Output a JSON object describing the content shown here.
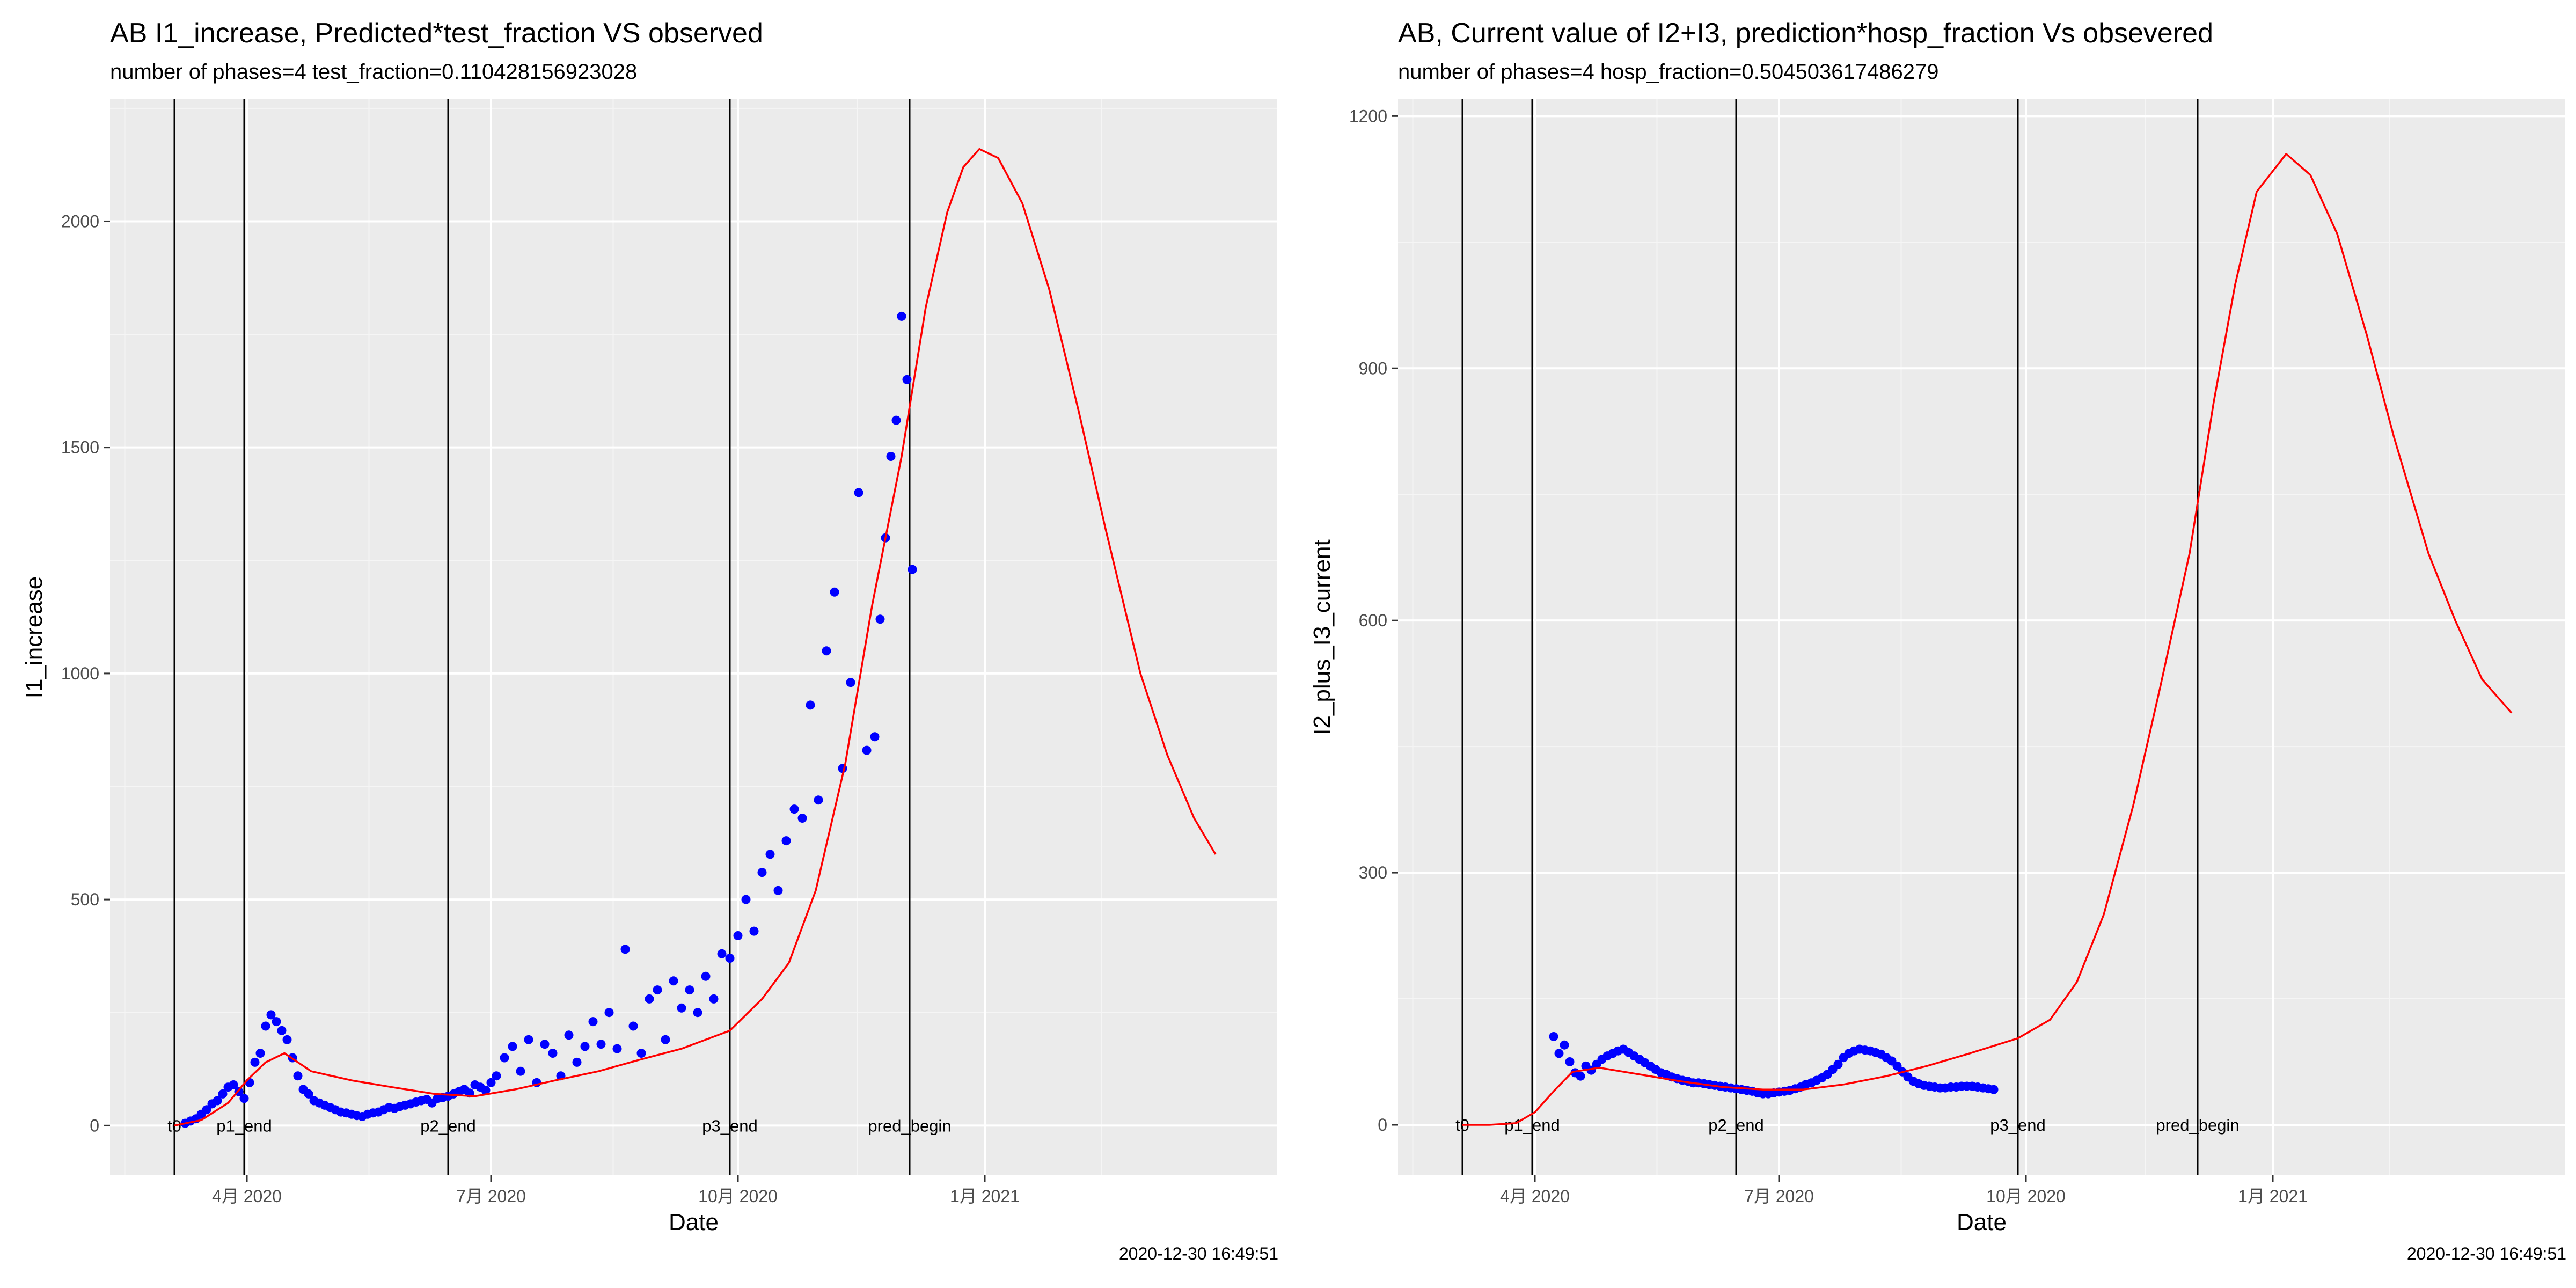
{
  "chart_data": [
    {
      "type": "scatter",
      "title": "AB I1_increase, Predicted*test_fraction VS observed",
      "subtitle": "number of phases=4   test_fraction=0.110428156923028",
      "xlabel": "Date",
      "ylabel": "I1_increase",
      "timestamp": "2020-12-30 16:49:51",
      "xlim": [
        "2020-02-10",
        "2021-04-20"
      ],
      "ylim": [
        -110,
        2270
      ],
      "grid": true,
      "x_ticks": [
        {
          "date": "2020-04-01",
          "label": "4月 2020"
        },
        {
          "date": "2020-07-01",
          "label": "7月 2020"
        },
        {
          "date": "2020-10-01",
          "label": "10月 2020"
        },
        {
          "date": "2021-01-01",
          "label": "1月 2021"
        }
      ],
      "y_ticks": [
        0,
        500,
        1000,
        1500,
        2000
      ],
      "vlines": [
        {
          "date": "2020-03-05",
          "label": "t0"
        },
        {
          "date": "2020-03-31",
          "label": "p1_end"
        },
        {
          "date": "2020-06-15",
          "label": "p2_end"
        },
        {
          "date": "2020-09-28",
          "label": "p3_end"
        },
        {
          "date": "2020-12-04",
          "label": "pred_begin"
        }
      ],
      "series": [
        {
          "name": "",
          "kind": "points",
          "color": "#0000ff",
          "x": [
            "2020-03-09",
            "2020-03-11",
            "2020-03-13",
            "2020-03-15",
            "2020-03-17",
            "2020-03-19",
            "2020-03-21",
            "2020-03-23",
            "2020-03-25",
            "2020-03-27",
            "2020-03-29",
            "2020-03-31",
            "2020-04-02",
            "2020-04-04",
            "2020-04-06",
            "2020-04-08",
            "2020-04-10",
            "2020-04-12",
            "2020-04-14",
            "2020-04-16",
            "2020-04-18",
            "2020-04-20",
            "2020-04-22",
            "2020-04-24",
            "2020-04-26",
            "2020-04-28",
            "2020-04-30",
            "2020-05-02",
            "2020-05-04",
            "2020-05-06",
            "2020-05-08",
            "2020-05-10",
            "2020-05-12",
            "2020-05-14",
            "2020-05-16",
            "2020-05-18",
            "2020-05-20",
            "2020-05-22",
            "2020-05-24",
            "2020-05-26",
            "2020-05-28",
            "2020-05-30",
            "2020-06-01",
            "2020-06-03",
            "2020-06-05",
            "2020-06-07",
            "2020-06-09",
            "2020-06-11",
            "2020-06-13",
            "2020-06-15",
            "2020-06-17",
            "2020-06-19",
            "2020-06-21",
            "2020-06-23",
            "2020-06-25",
            "2020-06-27",
            "2020-06-29",
            "2020-07-01",
            "2020-07-03",
            "2020-07-06",
            "2020-07-09",
            "2020-07-12",
            "2020-07-15",
            "2020-07-18",
            "2020-07-21",
            "2020-07-24",
            "2020-07-27",
            "2020-07-30",
            "2020-08-02",
            "2020-08-05",
            "2020-08-08",
            "2020-08-11",
            "2020-08-14",
            "2020-08-17",
            "2020-08-20",
            "2020-08-23",
            "2020-08-26",
            "2020-08-29",
            "2020-09-01",
            "2020-09-04",
            "2020-09-07",
            "2020-09-10",
            "2020-09-13",
            "2020-09-16",
            "2020-09-19",
            "2020-09-22",
            "2020-09-25",
            "2020-09-28",
            "2020-10-01",
            "2020-10-04",
            "2020-10-07",
            "2020-10-10",
            "2020-10-13",
            "2020-10-16",
            "2020-10-19",
            "2020-10-22",
            "2020-10-25",
            "2020-10-28",
            "2020-10-31",
            "2020-11-03",
            "2020-11-06",
            "2020-11-09",
            "2020-11-12",
            "2020-11-15",
            "2020-11-18",
            "2020-11-21",
            "2020-11-23",
            "2020-11-25",
            "2020-11-27",
            "2020-11-29",
            "2020-12-01",
            "2020-12-03",
            "2020-12-05"
          ],
          "y": [
            5,
            10,
            15,
            25,
            35,
            48,
            55,
            70,
            85,
            90,
            75,
            60,
            95,
            140,
            160,
            220,
            245,
            230,
            210,
            190,
            150,
            110,
            80,
            70,
            55,
            50,
            45,
            40,
            35,
            30,
            28,
            25,
            22,
            20,
            25,
            28,
            30,
            35,
            40,
            38,
            42,
            45,
            48,
            52,
            55,
            58,
            50,
            60,
            62,
            65,
            70,
            75,
            80,
            72,
            90,
            85,
            78,
            95,
            110,
            150,
            175,
            120,
            190,
            95,
            180,
            160,
            110,
            200,
            140,
            175,
            230,
            180,
            250,
            170,
            390,
            220,
            160,
            280,
            300,
            190,
            320,
            260,
            300,
            250,
            330,
            280,
            380,
            370,
            420,
            500,
            430,
            560,
            600,
            520,
            630,
            700,
            680,
            930,
            720,
            1050,
            1180,
            790,
            980,
            1400,
            830,
            860,
            1120,
            1300,
            1480,
            1560,
            1790,
            1650,
            1230
          ]
        },
        {
          "name": "",
          "kind": "line",
          "color": "#ff0000",
          "x": [
            "2020-03-05",
            "2020-03-15",
            "2020-03-25",
            "2020-04-01",
            "2020-04-08",
            "2020-04-15",
            "2020-04-25",
            "2020-05-10",
            "2020-05-25",
            "2020-06-10",
            "2020-06-25",
            "2020-07-10",
            "2020-07-25",
            "2020-08-10",
            "2020-08-25",
            "2020-09-10",
            "2020-09-28",
            "2020-10-10",
            "2020-10-20",
            "2020-10-30",
            "2020-11-10",
            "2020-11-20",
            "2020-12-01",
            "2020-12-10",
            "2020-12-18",
            "2020-12-24",
            "2020-12-30",
            "2021-01-06",
            "2021-01-15",
            "2021-01-25",
            "2021-02-05",
            "2021-02-15",
            "2021-02-28",
            "2021-03-10",
            "2021-03-20",
            "2021-03-28"
          ],
          "y": [
            0,
            12,
            50,
            100,
            140,
            160,
            120,
            100,
            85,
            70,
            65,
            80,
            100,
            120,
            145,
            170,
            210,
            280,
            360,
            520,
            800,
            1150,
            1480,
            1810,
            2020,
            2120,
            2160,
            2140,
            2040,
            1850,
            1580,
            1320,
            1000,
            820,
            680,
            600
          ]
        }
      ]
    },
    {
      "type": "scatter",
      "title": "AB, Current value of I2+I3, prediction*hosp_fraction Vs obsevered",
      "subtitle": "number of phases=4   hosp_fraction=0.504503617486279",
      "xlabel": "Date",
      "ylabel": "I2_plus_I3_current",
      "timestamp": "2020-12-30 16:49:51",
      "xlim": [
        "2020-02-10",
        "2021-04-20"
      ],
      "ylim": [
        -60,
        1220
      ],
      "grid": true,
      "x_ticks": [
        {
          "date": "2020-04-01",
          "label": "4月 2020"
        },
        {
          "date": "2020-07-01",
          "label": "7月 2020"
        },
        {
          "date": "2020-10-01",
          "label": "10月 2020"
        },
        {
          "date": "2021-01-01",
          "label": "1月 2021"
        }
      ],
      "y_ticks": [
        0,
        300,
        600,
        900,
        1200
      ],
      "vlines": [
        {
          "date": "2020-03-05",
          "label": "t0"
        },
        {
          "date": "2020-03-31",
          "label": "p1_end"
        },
        {
          "date": "2020-06-15",
          "label": "p2_end"
        },
        {
          "date": "2020-09-28",
          "label": "p3_end"
        },
        {
          "date": "2020-12-04",
          "label": "pred_begin"
        }
      ],
      "series": [
        {
          "name": "",
          "kind": "points",
          "color": "#0000ff",
          "x": [
            "2020-04-08",
            "2020-04-10",
            "2020-04-12",
            "2020-04-14",
            "2020-04-16",
            "2020-04-18",
            "2020-04-20",
            "2020-04-22",
            "2020-04-24",
            "2020-04-26",
            "2020-04-28",
            "2020-04-30",
            "2020-05-02",
            "2020-05-04",
            "2020-05-06",
            "2020-05-08",
            "2020-05-10",
            "2020-05-12",
            "2020-05-14",
            "2020-05-16",
            "2020-05-18",
            "2020-05-20",
            "2020-05-22",
            "2020-05-24",
            "2020-05-26",
            "2020-05-28",
            "2020-05-30",
            "2020-06-01",
            "2020-06-03",
            "2020-06-05",
            "2020-06-07",
            "2020-06-09",
            "2020-06-11",
            "2020-06-13",
            "2020-06-15",
            "2020-06-17",
            "2020-06-19",
            "2020-06-21",
            "2020-06-23",
            "2020-06-25",
            "2020-06-27",
            "2020-06-29",
            "2020-07-01",
            "2020-07-03",
            "2020-07-05",
            "2020-07-07",
            "2020-07-09",
            "2020-07-11",
            "2020-07-13",
            "2020-07-15",
            "2020-07-17",
            "2020-07-19",
            "2020-07-21",
            "2020-07-23",
            "2020-07-25",
            "2020-07-27",
            "2020-07-29",
            "2020-07-31",
            "2020-08-02",
            "2020-08-04",
            "2020-08-06",
            "2020-08-08",
            "2020-08-10",
            "2020-08-12",
            "2020-08-14",
            "2020-08-16",
            "2020-08-18",
            "2020-08-20",
            "2020-08-22",
            "2020-08-24",
            "2020-08-26",
            "2020-08-28",
            "2020-08-30",
            "2020-09-01",
            "2020-09-03",
            "2020-09-05",
            "2020-09-07",
            "2020-09-09",
            "2020-09-11",
            "2020-09-13",
            "2020-09-15",
            "2020-09-17",
            "2020-09-19"
          ],
          "y": [
            105,
            85,
            95,
            75,
            62,
            58,
            70,
            65,
            72,
            78,
            82,
            85,
            88,
            90,
            86,
            82,
            78,
            74,
            70,
            66,
            62,
            60,
            57,
            55,
            53,
            52,
            50,
            50,
            49,
            48,
            47,
            46,
            45,
            44,
            43,
            42,
            41,
            40,
            38,
            37,
            37,
            38,
            39,
            40,
            41,
            43,
            45,
            48,
            50,
            53,
            56,
            60,
            66,
            72,
            80,
            85,
            88,
            90,
            89,
            88,
            86,
            84,
            80,
            76,
            70,
            63,
            57,
            52,
            49,
            47,
            46,
            45,
            44,
            44,
            45,
            45,
            46,
            46,
            46,
            45,
            44,
            43,
            42
          ]
        },
        {
          "name": "",
          "kind": "line",
          "color": "#ff0000",
          "x": [
            "2020-03-05",
            "2020-03-15",
            "2020-03-25",
            "2020-04-01",
            "2020-04-08",
            "2020-04-15",
            "2020-04-25",
            "2020-05-10",
            "2020-05-25",
            "2020-06-10",
            "2020-06-25",
            "2020-07-10",
            "2020-07-25",
            "2020-08-10",
            "2020-08-25",
            "2020-09-10",
            "2020-09-28",
            "2020-10-10",
            "2020-10-20",
            "2020-10-30",
            "2020-11-10",
            "2020-11-20",
            "2020-12-01",
            "2020-12-10",
            "2020-12-18",
            "2020-12-26",
            "2021-01-06",
            "2021-01-15",
            "2021-01-25",
            "2021-02-05",
            "2021-02-15",
            "2021-02-28",
            "2021-03-10",
            "2021-03-20",
            "2021-03-31"
          ],
          "y": [
            0,
            0,
            2,
            15,
            40,
            63,
            68,
            60,
            52,
            45,
            42,
            42,
            48,
            58,
            70,
            85,
            103,
            125,
            170,
            250,
            380,
            520,
            680,
            860,
            1000,
            1110,
            1155,
            1130,
            1060,
            940,
            820,
            680,
            600,
            530,
            490
          ]
        }
      ]
    }
  ]
}
